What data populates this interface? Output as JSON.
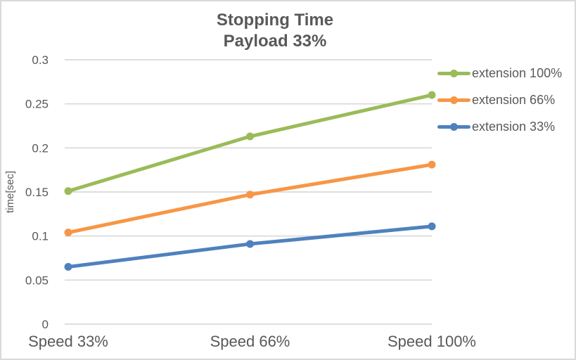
{
  "window": {
    "background": "#ffffff",
    "border_color": "#d9d9d9"
  },
  "chart_data": {
    "type": "line",
    "title": "Stopping Time",
    "subtitle": "Payload 33%",
    "xlabel": "",
    "ylabel": "time[sec]",
    "categories": [
      "Speed 33%",
      "Speed 66%",
      "Speed 100%"
    ],
    "series": [
      {
        "name": "extension 100%",
        "color": "#9bbb59",
        "values": [
          0.151,
          0.213,
          0.26
        ]
      },
      {
        "name": "extension 66%",
        "color": "#f79646",
        "values": [
          0.104,
          0.147,
          0.181
        ]
      },
      {
        "name": "extension 33%",
        "color": "#4f81bd",
        "values": [
          0.065,
          0.091,
          0.111
        ]
      }
    ],
    "ylim": [
      0,
      0.3
    ],
    "yticks": [
      0,
      0.05,
      0.1,
      0.15,
      0.2,
      0.25,
      0.3
    ],
    "ytick_labels": [
      "0",
      "0.05",
      "0.1",
      "0.15",
      "0.2",
      "0.25",
      "0.3"
    ],
    "grid": true,
    "legend_position": "right",
    "text_color": "#595959",
    "grid_color": "#d9d9d9",
    "marker": "circle"
  }
}
